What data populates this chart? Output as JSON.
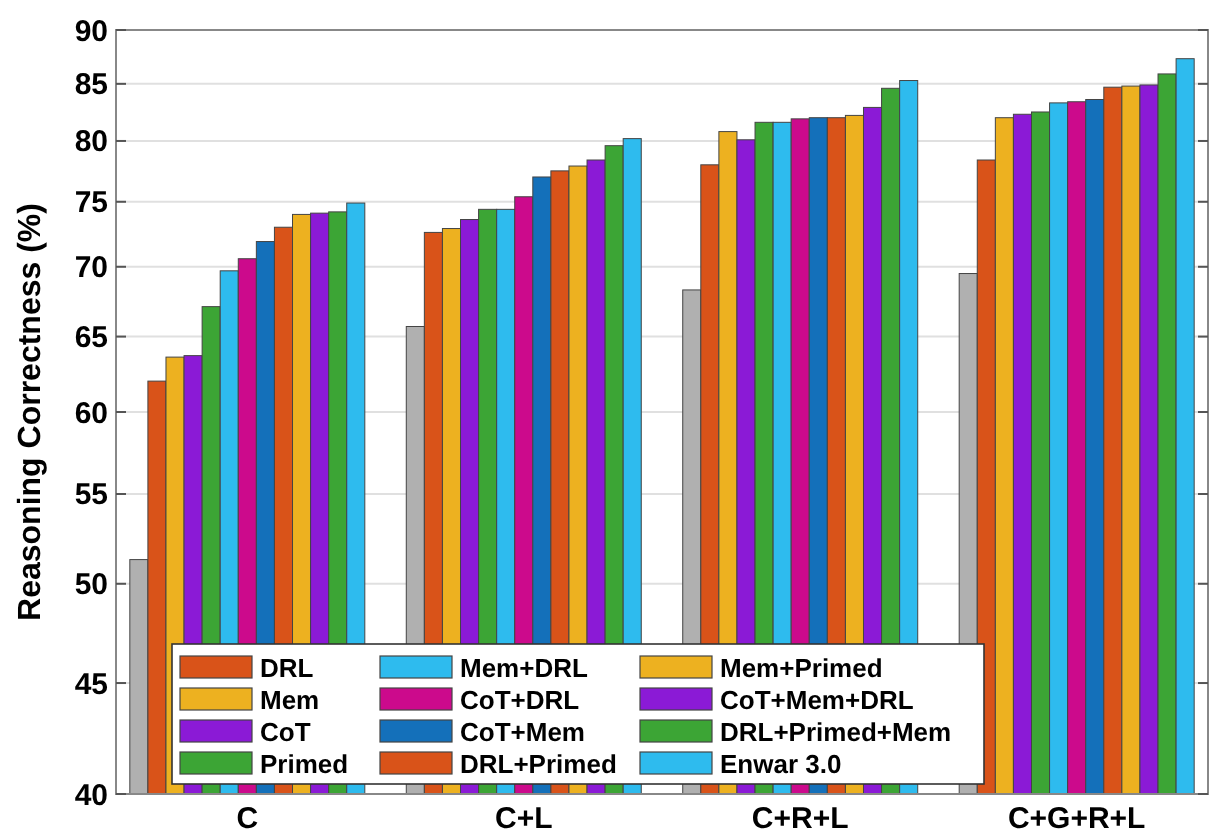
{
  "chart_data": {
    "type": "bar",
    "ylabel": "Reasoning Correctness (%)",
    "categories": [
      "C",
      "C+L",
      "C+R+L",
      "C+G+R+L"
    ],
    "log": true,
    "ylim": [
      40,
      90
    ],
    "yticks": [
      40,
      45,
      50,
      55,
      60,
      65,
      70,
      75,
      80,
      85,
      90
    ],
    "grid": "y",
    "legend": "bottom",
    "series": [
      {
        "color": "#b0b0b0",
        "values": [
          51.3,
          65.7,
          68.3,
          69.5
        ]
      },
      {
        "name": "DRL",
        "color": "#d95319",
        "values": [
          62,
          72.6,
          78,
          78.4
        ]
      },
      {
        "name": "Mem",
        "color": "#edb120",
        "values": [
          63.6,
          72.9,
          80.8,
          82
        ]
      },
      {
        "name": "CoT",
        "color": "#8b1ad6",
        "values": [
          63.7,
          73.6,
          80.1,
          82.3
        ]
      },
      {
        "name": "Primed",
        "color": "#3ca535",
        "values": [
          67.1,
          74.4,
          81.6,
          82.5
        ]
      },
      {
        "name": "Mem+DRL",
        "color": "#2ebbee",
        "values": [
          69.7,
          74.4,
          81.6,
          83.3
        ]
      },
      {
        "name": "CoT+DRL",
        "color": "#cc0a8c",
        "values": [
          70.6,
          75.4,
          81.9,
          83.4
        ]
      },
      {
        "name": "CoT+Mem",
        "color": "#1470ba",
        "values": [
          71.9,
          77,
          82,
          83.6
        ]
      },
      {
        "name": "DRL+Primed",
        "color": "#d95319",
        "values": [
          73,
          77.5,
          82,
          84.7
        ]
      },
      {
        "name": "Mem+Primed",
        "color": "#edb120",
        "values": [
          74,
          77.9,
          82.2,
          84.8
        ]
      },
      {
        "name": "CoT+Mem+DRL",
        "color": "#8b1ad6",
        "values": [
          74.1,
          78.4,
          82.9,
          84.9
        ]
      },
      {
        "name": "DRL+Primed+Mem",
        "color": "#3ca535",
        "values": [
          74.2,
          79.6,
          84.6,
          85.9
        ]
      },
      {
        "name": "Enwar 3.0",
        "color": "#2ebbee",
        "values": [
          74.9,
          80.2,
          85.3,
          87.3
        ]
      }
    ]
  }
}
